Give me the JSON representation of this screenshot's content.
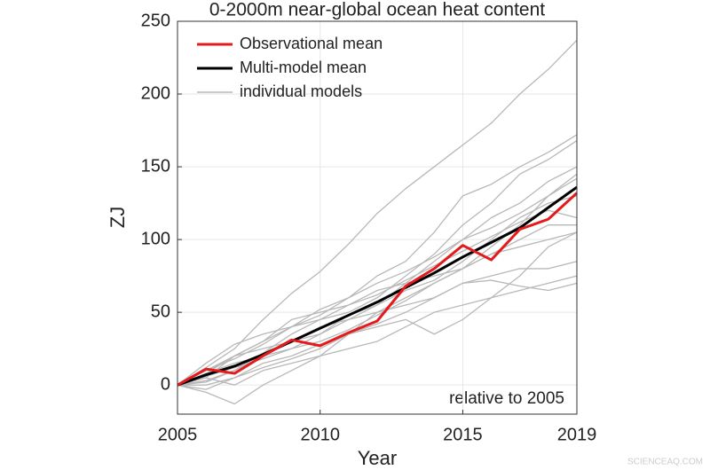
{
  "chart_data": {
    "type": "line",
    "title": "0-2000m near-global ocean heat content",
    "x_label": "Year",
    "y_label": "ZJ",
    "annotation": "relative to 2005",
    "watermark": "SCIENCEAQ.COM",
    "x": [
      2005,
      2006,
      2007,
      2008,
      2009,
      2010,
      2011,
      2012,
      2013,
      2014,
      2015,
      2016,
      2017,
      2018,
      2019
    ],
    "xlim": [
      2005,
      2019
    ],
    "xticks": [
      2005,
      2010,
      2015,
      2019
    ],
    "ylim": [
      -20,
      250
    ],
    "yticks": [
      0,
      50,
      100,
      150,
      200,
      250
    ],
    "grid": true,
    "legend": "top-left",
    "series": [
      {
        "name": "Observational mean",
        "color": "#e41a1c",
        "values": [
          0,
          11,
          8,
          20,
          31,
          27,
          36,
          44,
          68,
          80,
          96,
          86,
          107,
          114,
          132
        ]
      },
      {
        "name": "Multi-model mean",
        "color": "#000000",
        "values": [
          0,
          7,
          13,
          21,
          30,
          39,
          48,
          57,
          67,
          77,
          88,
          98,
          108,
          122,
          136
        ]
      },
      {
        "name": "individual models",
        "color": "#b8b8b8",
        "lines": [
          [
            0,
            12,
            25,
            45,
            63,
            78,
            97,
            118,
            135,
            150,
            165,
            180,
            200,
            217,
            237
          ],
          [
            0,
            5,
            20,
            30,
            40,
            48,
            60,
            75,
            85,
            105,
            130,
            138,
            150,
            160,
            172
          ],
          [
            0,
            3,
            10,
            22,
            35,
            45,
            50,
            60,
            75,
            90,
            110,
            125,
            145,
            155,
            168
          ],
          [
            0,
            8,
            15,
            20,
            25,
            35,
            48,
            55,
            70,
            85,
            100,
            115,
            125,
            140,
            150
          ],
          [
            0,
            -5,
            -13,
            0,
            10,
            20,
            35,
            50,
            60,
            70,
            80,
            95,
            110,
            130,
            145
          ],
          [
            0,
            0,
            5,
            15,
            20,
            28,
            35,
            40,
            45,
            35,
            45,
            60,
            75,
            95,
            105
          ],
          [
            0,
            10,
            20,
            25,
            30,
            40,
            45,
            50,
            55,
            60,
            70,
            75,
            80,
            80,
            85
          ],
          [
            0,
            5,
            0,
            10,
            15,
            20,
            25,
            30,
            40,
            50,
            55,
            60,
            65,
            70,
            75
          ],
          [
            0,
            15,
            28,
            35,
            40,
            45,
            55,
            65,
            70,
            75,
            80,
            90,
            100,
            110,
            110
          ],
          [
            0,
            2,
            10,
            20,
            30,
            35,
            45,
            55,
            65,
            72,
            85,
            100,
            115,
            125,
            130
          ],
          [
            0,
            6,
            12,
            18,
            25,
            30,
            38,
            48,
            58,
            70,
            80,
            90,
            95,
            100,
            105
          ],
          [
            0,
            10,
            18,
            28,
            40,
            52,
            60,
            70,
            78,
            88,
            100,
            108,
            118,
            130,
            142
          ],
          [
            0,
            -3,
            5,
            12,
            18,
            25,
            35,
            42,
            50,
            60,
            70,
            72,
            68,
            65,
            70
          ],
          [
            0,
            8,
            20,
            30,
            45,
            50,
            55,
            62,
            72,
            82,
            92,
            102,
            112,
            120,
            115
          ]
        ]
      }
    ]
  }
}
